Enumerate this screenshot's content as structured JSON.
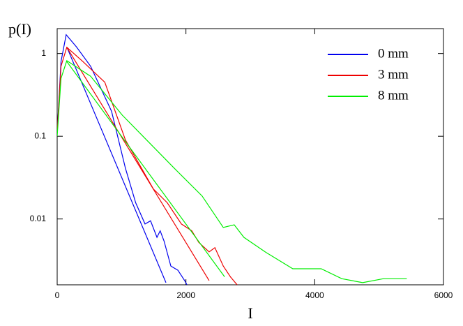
{
  "chart_data": {
    "type": "line",
    "y_label": "p(I)",
    "x_label": "I",
    "yscale": "log",
    "xlim": [
      0,
      6000
    ],
    "ylim": [
      0.0016,
      2
    ],
    "xticks": [
      0,
      2000,
      4000,
      6000
    ],
    "yticks": [
      0.01,
      0.1,
      1
    ],
    "legend": "upper right",
    "series": [
      {
        "name": "0 mm",
        "color": "#0000ee",
        "x": [
          0,
          60,
          140,
          300,
          520,
          845,
          1060,
          1220,
          1365,
          1450,
          1550,
          1600,
          1660,
          1765,
          1875,
          1980,
          2015
        ],
        "values": [
          0.11,
          0.8,
          1.69,
          1.2,
          0.7,
          0.2,
          0.041,
          0.0157,
          0.0087,
          0.0095,
          0.006,
          0.0072,
          0.0054,
          0.0027,
          0.0024,
          0.0018,
          0.0016
        ],
        "fit": {
          "x": [
            150,
            1690
          ],
          "values": [
            1.2,
            0.0017
          ]
        }
      },
      {
        "name": "3 mm",
        "color": "#ee0000",
        "x": [
          0,
          60,
          150,
          400,
          740,
          1060,
          1495,
          1710,
          1930,
          2090,
          2200,
          2360,
          2450,
          2580,
          2690,
          2795
        ],
        "values": [
          0.11,
          0.7,
          1.19,
          0.8,
          0.45,
          0.09,
          0.023,
          0.0157,
          0.0087,
          0.0072,
          0.0052,
          0.004,
          0.0045,
          0.0027,
          0.002,
          0.0016
        ],
        "fit": {
          "x": [
            150,
            2360
          ],
          "values": [
            1.19,
            0.0018
          ]
        }
      },
      {
        "name": "8 mm",
        "color": "#00ee00",
        "x": [
          0,
          60,
          150,
          520,
          1010,
          1390,
          1820,
          2250,
          2580,
          2750,
          2900,
          3230,
          3660,
          4100,
          4420,
          4745,
          5070,
          5430
        ],
        "values": [
          0.1,
          0.5,
          0.82,
          0.53,
          0.18,
          0.09,
          0.041,
          0.019,
          0.0079,
          0.0085,
          0.006,
          0.004,
          0.0025,
          0.0025,
          0.0019,
          0.0017,
          0.0019,
          0.0019
        ],
        "fit": {
          "x": [
            150,
            2600
          ],
          "values": [
            0.8,
            0.002
          ]
        }
      }
    ]
  }
}
